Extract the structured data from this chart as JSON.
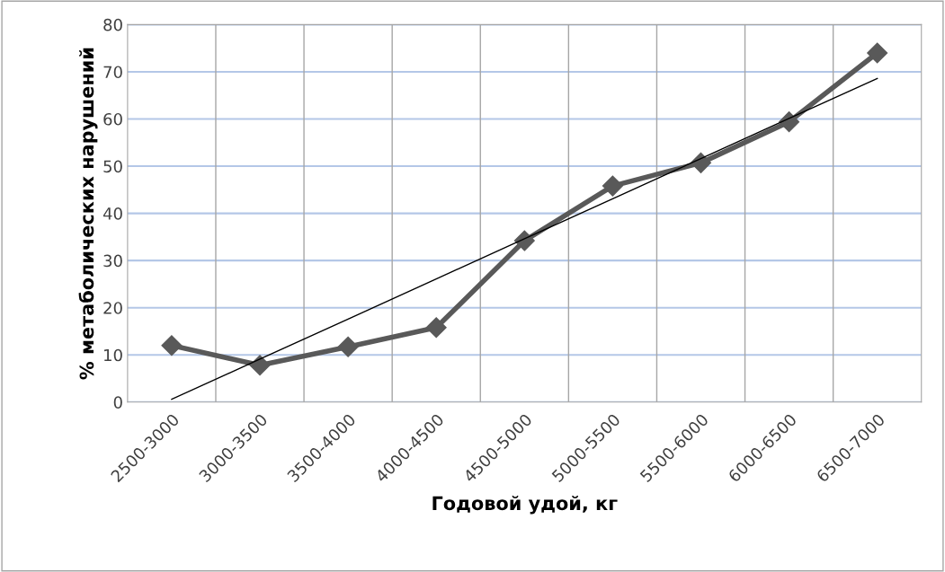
{
  "chart_data": {
    "type": "line",
    "xlabel": "Годовой удой, кг",
    "ylabel": "% метаболических нарушений",
    "categories": [
      "2500-3000",
      "3000-3500",
      "3500-4000",
      "4000-4500",
      "4500-5000",
      "5000-5500",
      "5500-6000",
      "6000-6500",
      "6500-7000"
    ],
    "series": [
      {
        "color": "#595959",
        "marker": "diamond",
        "values": [
          12,
          7.8,
          11.7,
          15.8,
          34.2,
          45.8,
          50.7,
          59.4,
          74
        ]
      },
      {
        "color": "#000000",
        "marker": "none",
        "values": [
          0.6,
          9.1,
          17.6,
          26.1,
          34.6,
          43.1,
          51.6,
          60.1,
          68.6
        ]
      }
    ],
    "ylim": [
      0,
      80
    ],
    "yticks": [
      0,
      10,
      20,
      30,
      40,
      50,
      60,
      70,
      80
    ],
    "grid": true,
    "legend": false
  }
}
